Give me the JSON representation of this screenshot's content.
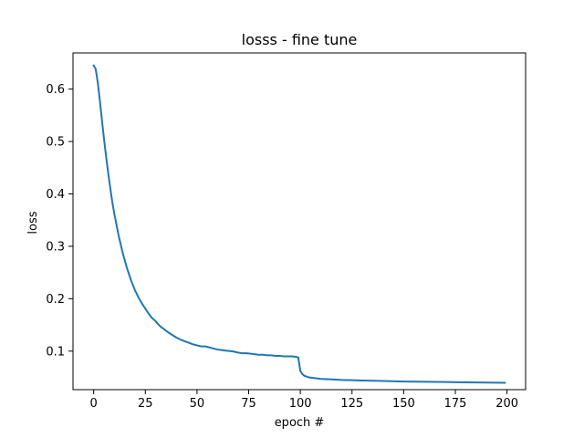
{
  "chart_data": {
    "type": "line",
    "title": "losss - fine tune",
    "xlabel": "epoch #",
    "ylabel": "loss",
    "xlim": [
      -10,
      209
    ],
    "ylim": [
      0.0265,
      0.669
    ],
    "xticks": [
      0,
      25,
      50,
      75,
      100,
      125,
      150,
      175,
      200
    ],
    "yticks": [
      0.1,
      0.2,
      0.3,
      0.4,
      0.5,
      0.6
    ],
    "ytick_labels": [
      "0.1",
      "0.2",
      "0.3",
      "0.4",
      "0.5",
      "0.6"
    ],
    "grid": false,
    "line_color": "#1f77b4",
    "series": [
      {
        "x": [
          0,
          1,
          2,
          3,
          4,
          5,
          6,
          7,
          8,
          9,
          10,
          12,
          14,
          16,
          18,
          20,
          22,
          24,
          26,
          28,
          30,
          32,
          34,
          36,
          38,
          40,
          42,
          44,
          46,
          48,
          50,
          52,
          54,
          56,
          58,
          60,
          62,
          64,
          66,
          68,
          70,
          72,
          74,
          76,
          78,
          80,
          82,
          84,
          86,
          88,
          90,
          92,
          94,
          96,
          98,
          99,
          100,
          101,
          102,
          104,
          106,
          108,
          110,
          115,
          120,
          125,
          130,
          140,
          150,
          160,
          170,
          180,
          190,
          199
        ],
        "y": [
          0.645,
          0.638,
          0.612,
          0.578,
          0.541,
          0.505,
          0.472,
          0.441,
          0.412,
          0.385,
          0.362,
          0.322,
          0.288,
          0.26,
          0.236,
          0.216,
          0.2,
          0.187,
          0.175,
          0.164,
          0.157,
          0.148,
          0.142,
          0.136,
          0.131,
          0.126,
          0.122,
          0.119,
          0.116,
          0.113,
          0.111,
          0.109,
          0.109,
          0.107,
          0.105,
          0.103,
          0.102,
          0.101,
          0.1,
          0.099,
          0.097,
          0.096,
          0.096,
          0.095,
          0.094,
          0.093,
          0.093,
          0.092,
          0.092,
          0.091,
          0.091,
          0.09,
          0.09,
          0.09,
          0.089,
          0.088,
          0.062,
          0.056,
          0.053,
          0.05,
          0.049,
          0.048,
          0.047,
          0.046,
          0.045,
          0.0445,
          0.044,
          0.043,
          0.042,
          0.0415,
          0.041,
          0.0405,
          0.04,
          0.0395
        ]
      }
    ]
  }
}
